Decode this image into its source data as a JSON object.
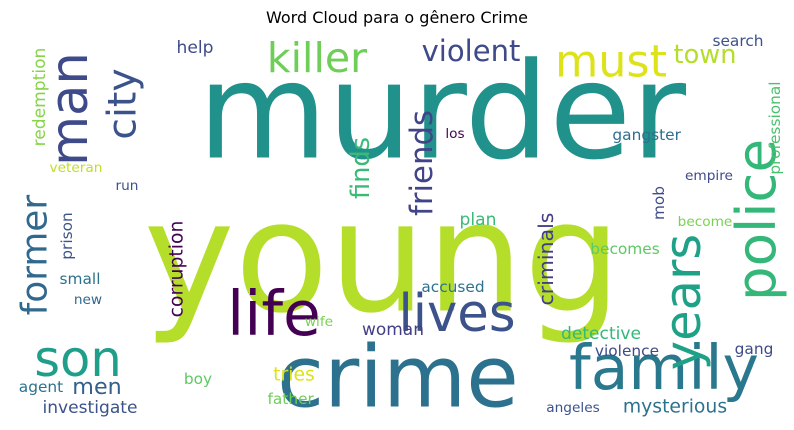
{
  "title": "Word Cloud para o gênero Crime",
  "words": [
    {
      "text": "murder",
      "color": "#21918c"
    },
    {
      "text": "young",
      "color": "#b5de2b"
    },
    {
      "text": "crime",
      "color": "#2c728e"
    },
    {
      "text": "police",
      "color": "#35b779"
    },
    {
      "text": "family",
      "color": "#2a788e"
    },
    {
      "text": "life",
      "color": "#440154"
    },
    {
      "text": "lives",
      "color": "#3b528b"
    },
    {
      "text": "man",
      "color": "#3e4a89"
    },
    {
      "text": "killer",
      "color": "#6ece58"
    },
    {
      "text": "must",
      "color": "#dde318"
    },
    {
      "text": "son",
      "color": "#1f9e89"
    },
    {
      "text": "former",
      "color": "#31688e"
    },
    {
      "text": "years",
      "color": "#1fa187"
    },
    {
      "text": "city",
      "color": "#3b528b"
    },
    {
      "text": "violent",
      "color": "#3e4a89"
    },
    {
      "text": "town",
      "color": "#b5de2b"
    },
    {
      "text": "friends",
      "color": "#414487"
    },
    {
      "text": "finds",
      "color": "#3aba76"
    },
    {
      "text": "men",
      "color": "#355f8d"
    },
    {
      "text": "help",
      "color": "#3e4a89"
    },
    {
      "text": "search",
      "color": "#3b528b"
    },
    {
      "text": "redemption",
      "color": "#86d549"
    },
    {
      "text": "professional",
      "color": "#4ac16d"
    },
    {
      "text": "veteran",
      "color": "#c0df25"
    },
    {
      "text": "gangster",
      "color": "#2d708e"
    },
    {
      "text": "los",
      "color": "#440154"
    },
    {
      "text": "run",
      "color": "#3b528b"
    },
    {
      "text": "empire",
      "color": "#3e4a89"
    },
    {
      "text": "mob",
      "color": "#3e4a89"
    },
    {
      "text": "become",
      "color": "#7ad151"
    },
    {
      "text": "prison",
      "color": "#3b528b"
    },
    {
      "text": "corruption",
      "color": "#440154"
    },
    {
      "text": "criminals",
      "color": "#433e85"
    },
    {
      "text": "plan",
      "color": "#3aba76"
    },
    {
      "text": "becomes",
      "color": "#5ec962"
    },
    {
      "text": "small",
      "color": "#2c728e"
    },
    {
      "text": "new",
      "color": "#31688e"
    },
    {
      "text": "wife",
      "color": "#7ad151"
    },
    {
      "text": "accused",
      "color": "#2c728e"
    },
    {
      "text": "woman",
      "color": "#433e85"
    },
    {
      "text": "detective",
      "color": "#35b779"
    },
    {
      "text": "violence",
      "color": "#3e4a89"
    },
    {
      "text": "gang",
      "color": "#3e4a89"
    },
    {
      "text": "agent",
      "color": "#2c728e"
    },
    {
      "text": "boy",
      "color": "#5ec962"
    },
    {
      "text": "tries",
      "color": "#dde318"
    },
    {
      "text": "father",
      "color": "#6ece58"
    },
    {
      "text": "investigate",
      "color": "#3b528b"
    },
    {
      "text": "angeles",
      "color": "#3b528b"
    },
    {
      "text": "mysterious",
      "color": "#2c728e"
    }
  ]
}
